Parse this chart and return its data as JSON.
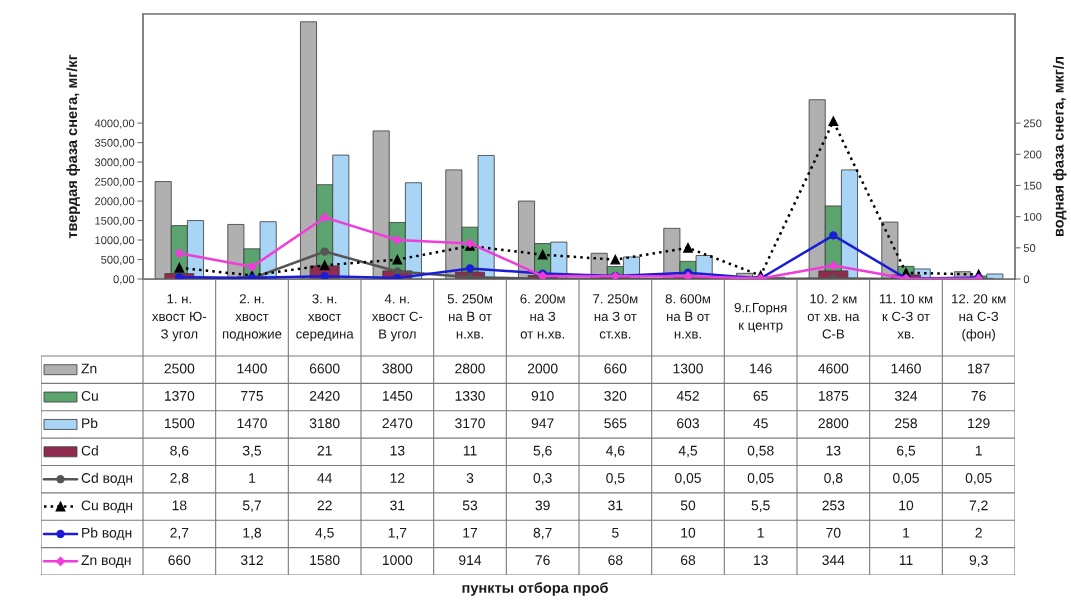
{
  "chart_data": {
    "type": "bar",
    "categories": [
      "1. н.\nхвост Ю-\nЗ угол",
      "2. н.\nхвост\nподножие",
      "3. н.\nхвост\nсередина",
      "4. н.\nхвост С-\nВ угол",
      "5. 250м\nна В от\nн.хв.",
      "6. 200м\nна З\nот н.хв.",
      "7. 250м\nна З от\nст.хв.",
      "8. 600м\nна В от\nн.хв.",
      "9.г.Горня\nк центр",
      "10. 2 км\nот хв. на\nС-В",
      "11. 10 км\nк С-З от\nхв.",
      "12. 20 км\nна С-З\n(фон)"
    ],
    "ylabel": "твердая фаза снега, мг/кг",
    "y2label": "водная фаза снега, мкг/л",
    "annotations": [
      "пункты отбора проб"
    ],
    "ylim": [
      0,
      6800
    ],
    "yticks": [
      {
        "value": 0,
        "label": "0,00"
      },
      {
        "value": 500,
        "label": "500,00"
      },
      {
        "value": 1000,
        "label": "1000,00"
      },
      {
        "value": 1500,
        "label": "1500,00"
      },
      {
        "value": 2000,
        "label": "2000,00"
      },
      {
        "value": 2500,
        "label": "2500,00"
      },
      {
        "value": 3000,
        "label": "3000,00"
      },
      {
        "value": 3500,
        "label": "3500,00"
      },
      {
        "value": 4000,
        "label": "4000,00"
      }
    ],
    "y2lim": [
      0,
      425
    ],
    "y2ticks": [
      0,
      50,
      100,
      150,
      200,
      250
    ],
    "legend": "bottom",
    "series": [
      {
        "name": "Zn",
        "color": "#b0b0b0",
        "values": [
          2500,
          1400,
          6600,
          3800,
          2800,
          2000,
          660,
          1300,
          146,
          4600,
          1460,
          187
        ],
        "value_labels": [
          "2500",
          "1400",
          "6600",
          "3800",
          "2800",
          "2000",
          "660",
          "1300",
          "146",
          "4600",
          "1460",
          "187"
        ]
      },
      {
        "name": "Cu",
        "color": "#5ba36f",
        "values": [
          1370,
          775,
          2420,
          1450,
          1330,
          910,
          320,
          452,
          65,
          1875,
          324,
          76
        ],
        "value_labels": [
          "1370",
          "775",
          "2420",
          "1450",
          "1330",
          "910",
          "320",
          "452",
          "65",
          "1875",
          "324",
          "76"
        ]
      },
      {
        "name": "Pb",
        "color": "#a8d4f5",
        "values": [
          1500,
          1470,
          3180,
          2470,
          3170,
          947,
          565,
          603,
          45,
          2800,
          258,
          129
        ],
        "value_labels": [
          "1500",
          "1470",
          "3180",
          "2470",
          "3170",
          "947",
          "565",
          "603",
          "45",
          "2800",
          "258",
          "129"
        ]
      },
      {
        "name": "Cd",
        "axis": "y2",
        "color": "#8e2b4f",
        "values": [
          8.6,
          3.5,
          21,
          13,
          11,
          5.6,
          4.6,
          4.5,
          0.58,
          13,
          6.5,
          1
        ],
        "value_labels": [
          "8,6",
          "3,5",
          "21",
          "13",
          "11",
          "5,6",
          "4,6",
          "4,5",
          "0,58",
          "13",
          "6,5",
          "1"
        ]
      },
      {
        "name": "Cd водн",
        "type": "line",
        "axis": "y2",
        "color": "#555555",
        "marker": "circle",
        "line_style": "solid",
        "values": [
          2.8,
          1,
          44,
          12,
          3,
          0.3,
          0.5,
          0.05,
          0.05,
          0.8,
          0.05,
          0.05
        ],
        "value_labels": [
          "2,8",
          "1",
          "44",
          "12",
          "3",
          "0,3",
          "0,5",
          "0,05",
          "0,05",
          "0,8",
          "0,05",
          "0,05"
        ]
      },
      {
        "name": "Cu водн",
        "type": "line",
        "axis": "y2",
        "color": "#000000",
        "marker": "triangle",
        "line_style": "dotted",
        "values": [
          18,
          5.7,
          22,
          31,
          53,
          39,
          31,
          50,
          5.5,
          253,
          10,
          7.2
        ],
        "value_labels": [
          "18",
          "5,7",
          "22",
          "31",
          "53",
          "39",
          "31",
          "50",
          "5,5",
          "253",
          "10",
          "7,2"
        ]
      },
      {
        "name": "Pb водн",
        "type": "line",
        "axis": "y2",
        "color": "#1c1cd6",
        "marker": "circle",
        "line_style": "solid",
        "values": [
          2.7,
          1.8,
          4.5,
          1.7,
          17,
          8.7,
          5,
          10,
          1,
          70,
          1,
          2
        ],
        "value_labels": [
          "2,7",
          "1,8",
          "4,5",
          "1,7",
          "17",
          "8,7",
          "5",
          "10",
          "1",
          "70",
          "1",
          "2"
        ]
      },
      {
        "name": "Zn водн",
        "type": "line",
        "axis": "y",
        "color": "#f03cd8",
        "marker": "diamond",
        "line_style": "solid",
        "values": [
          660,
          312,
          1580,
          1000,
          914,
          76,
          68,
          68,
          13,
          344,
          11,
          9.3
        ],
        "value_labels": [
          "660",
          "312",
          "1580",
          "1000",
          "914",
          "76",
          "68",
          "68",
          "13",
          "344",
          "11",
          "9,3"
        ]
      }
    ]
  }
}
